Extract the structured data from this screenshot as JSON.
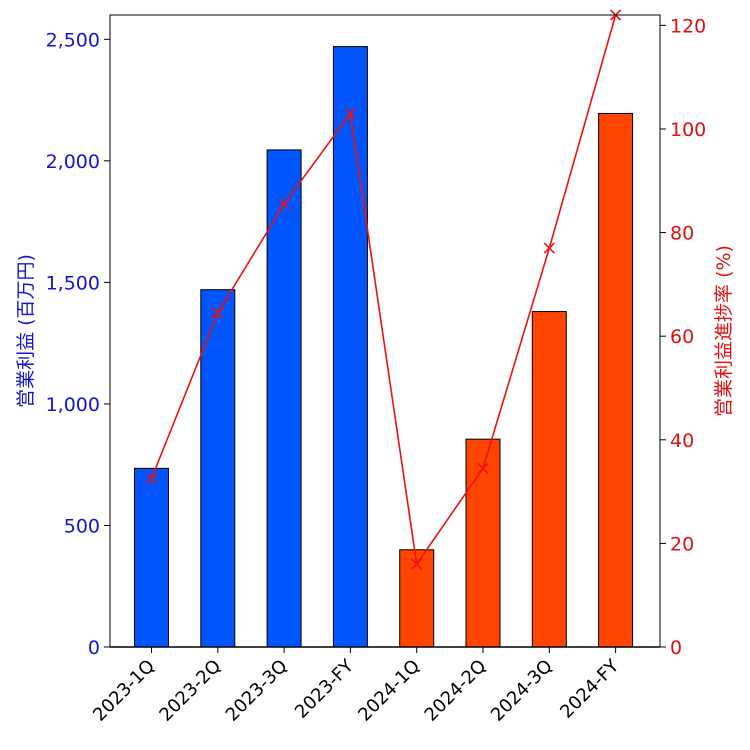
{
  "chart_data": {
    "type": "bar",
    "categories": [
      "2023-1Q",
      "2023-2Q",
      "2023-3Q",
      "2023-FY",
      "2024-1Q",
      "2024-2Q",
      "2024-3Q",
      "2024-FY"
    ],
    "series": [
      {
        "name": "営業利益",
        "axis": "left",
        "type": "bar",
        "values": [
          735,
          1470,
          2045,
          2470,
          400,
          855,
          1380,
          2195
        ],
        "colors": [
          "#0055ff",
          "#0055ff",
          "#0055ff",
          "#0055ff",
          "#ff4500",
          "#ff4500",
          "#ff4500",
          "#ff4500"
        ]
      },
      {
        "name": "営業利益進捗率",
        "axis": "right",
        "type": "line",
        "marker": "x",
        "color": "#ee1111",
        "values": [
          32.5,
          64.5,
          85.5,
          103,
          16,
          34.5,
          77,
          122
        ]
      }
    ],
    "title": "",
    "xlabel": "",
    "ylabel_left": "営業利益 (百万円)",
    "ylabel_right": "営業利益進捗率 (%)",
    "ylim_left": [
      0,
      2600
    ],
    "ylim_right": [
      0,
      122
    ],
    "yticks_left": [
      0,
      500,
      1000,
      1500,
      2000,
      2500
    ],
    "yticks_left_labels": [
      "0",
      "500",
      "1,000",
      "1,500",
      "2,000",
      "2,500"
    ],
    "yticks_right": [
      0,
      20,
      40,
      60,
      80,
      100,
      120
    ],
    "yticks_right_labels": [
      "0",
      "20",
      "40",
      "60",
      "80",
      "100",
      "120"
    ],
    "left_axis_color": "#1515d0",
    "right_axis_color": "#e01010",
    "grid": false,
    "legend": "none"
  }
}
